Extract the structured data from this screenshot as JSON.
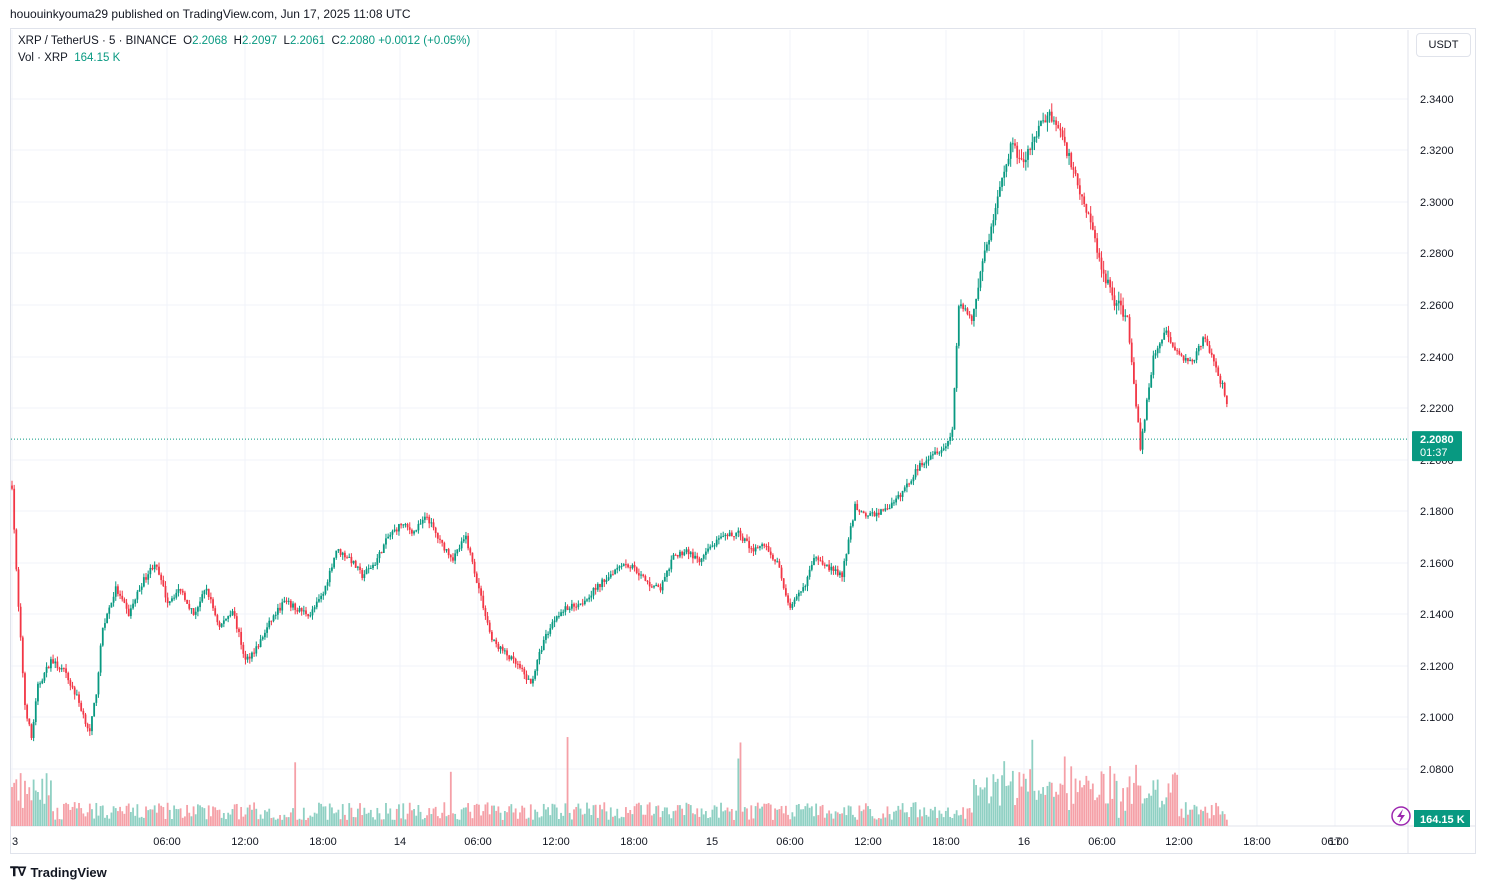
{
  "header": {
    "published_line": "hououinkyouma29 published on TradingView.com, Jun 17, 2025 11:08 UTC"
  },
  "legend": {
    "symbol": "XRP / TetherUS · 5 · BINANCE",
    "o_label": "O",
    "o_value": "2.2068",
    "h_label": "H",
    "h_value": "2.2097",
    "l_label": "L",
    "l_value": "2.2061",
    "c_label": "C",
    "c_value": "2.2080",
    "change": "+0.0012 (+0.05%)",
    "vol_label": "Vol · XRP",
    "vol_value": "164.15 K"
  },
  "currency_button": "USDT",
  "brand": {
    "name": "TradingView",
    "icon": "tradingview-logo-icon"
  },
  "colors": {
    "up": "#089981",
    "down": "#f23645",
    "vol_up": "#8fd0c3",
    "vol_down": "#f5a0a7",
    "grid": "#f0f3fa"
  },
  "chart_data": {
    "type": "candlestick",
    "symbol": "XRP / TetherUS",
    "exchange": "BINANCE",
    "interval": "5",
    "ylim": [
      2.072,
      2.35
    ],
    "y_ticks": [
      "2.3400",
      "2.3200",
      "2.3000",
      "2.2800",
      "2.2600",
      "2.2400",
      "2.2200",
      "2.2000",
      "2.1800",
      "2.1600",
      "2.1400",
      "2.1200",
      "2.1000",
      "2.0800"
    ],
    "x_ticks": [
      "3",
      "06:00",
      "12:00",
      "18:00",
      "14",
      "06:00",
      "12:00",
      "18:00",
      "15",
      "06:00",
      "12:00",
      "18:00",
      "16",
      "06:00",
      "12:00",
      "18:00",
      "17",
      "06:00"
    ],
    "last_price": "2.2080",
    "countdown": "01:37",
    "last_volume": "164.15 K",
    "price_path_hours": [
      0,
      0.4,
      1,
      1.5,
      2,
      3,
      4,
      5,
      6,
      6.5,
      7,
      8,
      9,
      10,
      11,
      12,
      13,
      14,
      15,
      16,
      17,
      18,
      19,
      20,
      21,
      22,
      23,
      24,
      25,
      26,
      27,
      28,
      29,
      30,
      31,
      32,
      33,
      34,
      35,
      36,
      37,
      38,
      39,
      40,
      41,
      42,
      43,
      44,
      45,
      46,
      47,
      48,
      49,
      50,
      51,
      52,
      53,
      54,
      55,
      56,
      57,
      58,
      59,
      60,
      61,
      62,
      63,
      64,
      65,
      66,
      67,
      68,
      69,
      70,
      71,
      72,
      72.5,
      73,
      74,
      75,
      76,
      77,
      78,
      79,
      80,
      81,
      82,
      83,
      84,
      85,
      86,
      87,
      88,
      89,
      90,
      91,
      92,
      93,
      93.4,
      93.8
    ],
    "price_path_values": [
      2.19,
      2.15,
      2.105,
      2.092,
      2.112,
      2.122,
      2.118,
      2.108,
      2.094,
      2.11,
      2.135,
      2.15,
      2.14,
      2.152,
      2.16,
      2.145,
      2.15,
      2.14,
      2.15,
      2.135,
      2.142,
      2.122,
      2.128,
      2.138,
      2.145,
      2.142,
      2.14,
      2.148,
      2.165,
      2.162,
      2.155,
      2.16,
      2.17,
      2.175,
      2.172,
      2.178,
      2.168,
      2.162,
      2.17,
      2.15,
      2.13,
      2.125,
      2.12,
      2.113,
      2.13,
      2.14,
      2.143,
      2.145,
      2.15,
      2.155,
      2.16,
      2.158,
      2.152,
      2.15,
      2.162,
      2.165,
      2.16,
      2.167,
      2.17,
      2.172,
      2.165,
      2.167,
      2.16,
      2.142,
      2.15,
      2.163,
      2.158,
      2.155,
      2.182,
      2.178,
      2.18,
      2.183,
      2.19,
      2.198,
      2.203,
      2.205,
      2.212,
      2.26,
      2.255,
      2.28,
      2.3,
      2.322,
      2.315,
      2.327,
      2.335,
      2.325,
      2.31,
      2.295,
      2.275,
      2.262,
      2.255,
      2.205,
      2.24,
      2.25,
      2.24,
      2.238,
      2.248,
      2.232,
      2.228,
      2.218,
      2.21,
      2.208
    ]
  }
}
